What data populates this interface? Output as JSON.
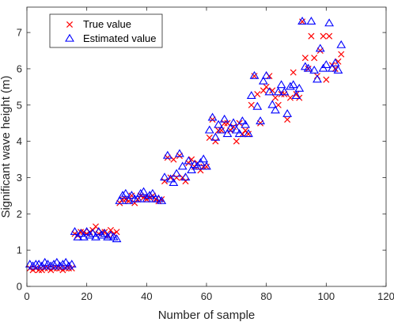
{
  "chart_data": {
    "type": "scatter",
    "title": "",
    "xlabel": "Number of sample",
    "ylabel": "Significant wave height (m)",
    "xlim": [
      0,
      120
    ],
    "ylim": [
      0,
      7.7
    ],
    "xticks": [
      0,
      20,
      40,
      60,
      80,
      100,
      120
    ],
    "yticks": [
      0,
      1,
      2,
      3,
      4,
      5,
      6,
      7
    ],
    "grid": false,
    "legend_position": "top-left",
    "series": [
      {
        "name": "True value",
        "marker": "x",
        "color": "#ff0000",
        "x": [
          1,
          2,
          3,
          4,
          5,
          6,
          7,
          8,
          9,
          10,
          11,
          12,
          13,
          14,
          15,
          16,
          17,
          18,
          19,
          20,
          21,
          22,
          23,
          24,
          25,
          26,
          27,
          28,
          29,
          30,
          31,
          32,
          33,
          34,
          35,
          36,
          37,
          38,
          39,
          40,
          41,
          42,
          43,
          44,
          45,
          46,
          47,
          48,
          49,
          50,
          51,
          52,
          53,
          54,
          55,
          56,
          57,
          58,
          59,
          60,
          61,
          62,
          63,
          64,
          65,
          66,
          67,
          68,
          69,
          70,
          71,
          72,
          73,
          74,
          75,
          76,
          77,
          78,
          79,
          80,
          81,
          82,
          83,
          84,
          85,
          86,
          87,
          88,
          89,
          90,
          91,
          92,
          93,
          94,
          95,
          96,
          97,
          98,
          99,
          100,
          101,
          102,
          103,
          104,
          105
        ],
        "y": [
          0.5,
          0.45,
          0.5,
          0.45,
          0.45,
          0.5,
          0.5,
          0.45,
          0.5,
          0.5,
          0.5,
          0.45,
          0.5,
          0.5,
          0.5,
          1.45,
          1.4,
          1.5,
          1.5,
          1.45,
          1.5,
          1.55,
          1.65,
          1.45,
          1.5,
          1.5,
          1.4,
          1.55,
          1.45,
          1.5,
          2.3,
          2.4,
          2.4,
          2.35,
          2.5,
          2.3,
          2.4,
          2.5,
          2.45,
          2.4,
          2.45,
          2.5,
          2.4,
          2.35,
          2.4,
          2.9,
          3.55,
          3.0,
          3.5,
          3.0,
          3.6,
          3.0,
          2.9,
          3.4,
          3.5,
          3.3,
          3.4,
          3.2,
          3.3,
          3.3,
          4.1,
          4.6,
          4.0,
          4.3,
          4.3,
          4.5,
          4.5,
          4.3,
          4.4,
          4.0,
          4.5,
          4.2,
          4.3,
          4.2,
          5.0,
          5.8,
          5.3,
          4.5,
          5.4,
          5.5,
          5.8,
          5.4,
          5.2,
          5.0,
          5.3,
          5.3,
          4.6,
          5.2,
          5.9,
          5.3,
          5.2,
          7.3,
          6.3,
          6.0,
          6.9,
          6.3,
          5.8,
          6.5,
          6.9,
          5.7,
          6.9,
          6.1,
          6.0,
          6.2,
          6.4
        ]
      },
      {
        "name": "Estimated value",
        "marker": "triangle",
        "color": "#0000ff",
        "x": [
          1,
          2,
          3,
          4,
          5,
          6,
          7,
          8,
          9,
          10,
          11,
          12,
          13,
          14,
          15,
          16,
          17,
          18,
          19,
          20,
          21,
          22,
          23,
          24,
          25,
          26,
          27,
          28,
          29,
          30,
          31,
          32,
          33,
          34,
          35,
          36,
          37,
          38,
          39,
          40,
          41,
          42,
          43,
          44,
          45,
          46,
          47,
          48,
          49,
          50,
          51,
          52,
          53,
          54,
          55,
          56,
          57,
          58,
          59,
          60,
          61,
          62,
          63,
          64,
          65,
          66,
          67,
          68,
          69,
          70,
          71,
          72,
          73,
          74,
          75,
          76,
          77,
          78,
          79,
          80,
          81,
          82,
          83,
          84,
          85,
          86,
          87,
          88,
          89,
          90,
          91,
          92,
          93,
          94,
          95,
          96,
          97,
          98,
          99,
          100,
          101,
          102,
          103,
          104,
          105
        ],
        "y": [
          0.6,
          0.55,
          0.6,
          0.6,
          0.55,
          0.65,
          0.6,
          0.55,
          0.6,
          0.65,
          0.55,
          0.6,
          0.65,
          0.55,
          0.6,
          1.5,
          1.35,
          1.45,
          1.35,
          1.5,
          1.4,
          1.45,
          1.35,
          1.5,
          1.4,
          1.45,
          1.35,
          1.4,
          1.35,
          1.3,
          2.35,
          2.5,
          2.55,
          2.35,
          2.5,
          2.4,
          2.4,
          2.55,
          2.6,
          2.4,
          2.5,
          2.55,
          2.4,
          2.4,
          2.35,
          3.0,
          3.6,
          2.95,
          2.85,
          3.1,
          3.65,
          3.3,
          3.0,
          3.45,
          3.2,
          3.35,
          3.3,
          3.4,
          3.5,
          3.3,
          4.3,
          4.65,
          4.1,
          4.45,
          4.3,
          4.6,
          4.2,
          4.35,
          4.5,
          4.3,
          4.2,
          4.55,
          4.45,
          4.2,
          5.25,
          5.8,
          4.95,
          4.55,
          5.65,
          5.8,
          5.35,
          5.0,
          4.85,
          5.35,
          5.55,
          5.35,
          4.75,
          5.5,
          5.55,
          5.25,
          5.45,
          7.3,
          6.05,
          6.0,
          7.3,
          5.95,
          5.7,
          6.55,
          6.0,
          6.1,
          7.25,
          6.0,
          6.15,
          5.95,
          6.65
        ]
      }
    ]
  }
}
